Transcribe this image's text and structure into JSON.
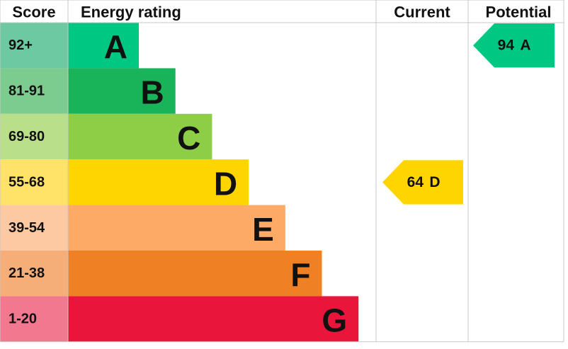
{
  "chart_data": {
    "type": "epc",
    "headers": {
      "score": "Score",
      "rating": "Energy rating",
      "current": "Current",
      "potential": "Potential"
    },
    "bands": [
      {
        "score": "92+",
        "letter": "A",
        "color": "#00c781",
        "score_color": "#6cc9a2"
      },
      {
        "score": "81-91",
        "letter": "B",
        "color": "#19b459",
        "score_color": "#7ccb8f"
      },
      {
        "score": "69-80",
        "letter": "C",
        "color": "#8dce46",
        "score_color": "#badf8b"
      },
      {
        "score": "55-68",
        "letter": "D",
        "color": "#ffd500",
        "score_color": "#ffe368"
      },
      {
        "score": "39-54",
        "letter": "E",
        "color": "#fcaa65",
        "score_color": "#fdc9a2"
      },
      {
        "score": "21-38",
        "letter": "F",
        "color": "#ef8023",
        "score_color": "#f5ae78"
      },
      {
        "score": "1-20",
        "letter": "G",
        "color": "#e9153b",
        "score_color": "#f27890"
      }
    ],
    "current": {
      "value": 64,
      "rating": "D"
    },
    "potential": {
      "value": 94,
      "rating": "A"
    }
  }
}
